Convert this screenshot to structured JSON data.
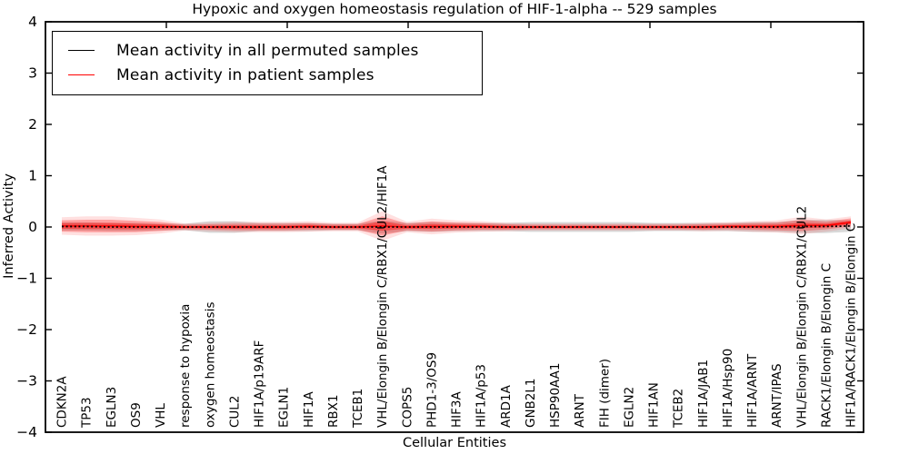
{
  "chart_data": {
    "type": "line",
    "title": "Hypoxic and oxygen homeostasis regulation of HIF-1-alpha -- 529 samples",
    "xlabel": "Cellular Entities",
    "ylabel": "Inferred Activity",
    "ylim": [
      -4,
      4
    ],
    "y_ticks": [
      -4,
      -3,
      -2,
      -1,
      0,
      1,
      2,
      3,
      4
    ],
    "x_tick_rotation": 90,
    "grid": false,
    "legend_position": "upper left",
    "background": "#ffffff",
    "frame_color": "#000000",
    "categories": [
      "CDKN2A",
      "TP53",
      "EGLN3",
      "OS9",
      "VHL",
      "response to hypoxia",
      "oxygen homeostasis",
      "CUL2",
      "HIF1A/p19ARF",
      "EGLN1",
      "HIF1A",
      "RBX1",
      "TCEB1",
      "VHL/Elongin B/Elongin C/RBX1/CUL2/HIF1A",
      "COPS5",
      "PHD1-3/OS9",
      "HIF3A",
      "HIF1A/p53",
      "ARD1A",
      "GNB2L1",
      "HSP90AA1",
      "ARNT",
      "FIH (dimer)",
      "EGLN2",
      "HIF1AN",
      "TCEB2",
      "HIF1A/JAB1",
      "HIF1A/Hsp90",
      "HIF1A/ARNT",
      "ARNT/IPAS",
      "VHL/Elongin B/Elongin C/RBX1/CUL2",
      "RACK1/Elongin B/Elongin C",
      "HIF1A/RACK1/Elongin B/Elongin C"
    ],
    "series": [
      {
        "name": "Mean activity in all permuted samples",
        "color": "#000000",
        "line_style": "dotted",
        "band_color": "#b8b8b8",
        "values": [
          0.01,
          0.01,
          0.0,
          0.0,
          0.0,
          0.0,
          0.0,
          0.0,
          0.0,
          0.0,
          0.0,
          0.0,
          0.0,
          0.0,
          0.0,
          0.0,
          0.0,
          0.0,
          0.0,
          0.0,
          0.0,
          0.0,
          0.0,
          0.0,
          0.0,
          0.0,
          0.0,
          0.0,
          0.0,
          0.0,
          0.01,
          0.01,
          0.02
        ],
        "band_std": [
          0.05,
          0.05,
          0.05,
          0.05,
          0.04,
          0.04,
          0.07,
          0.07,
          0.05,
          0.05,
          0.05,
          0.04,
          0.04,
          0.08,
          0.05,
          0.06,
          0.05,
          0.05,
          0.05,
          0.06,
          0.06,
          0.06,
          0.06,
          0.06,
          0.05,
          0.05,
          0.05,
          0.05,
          0.06,
          0.06,
          0.08,
          0.08,
          0.07
        ]
      },
      {
        "name": "Mean activity in patient samples",
        "color": "#ff0000",
        "line_style": "solid",
        "band_color": "#ff0000",
        "values": [
          0.02,
          0.02,
          0.02,
          0.01,
          0.01,
          0.0,
          0.0,
          0.0,
          0.0,
          0.0,
          0.01,
          0.0,
          0.0,
          0.02,
          0.0,
          0.01,
          0.01,
          0.01,
          0.0,
          0.0,
          0.0,
          0.0,
          0.0,
          0.0,
          0.0,
          0.0,
          0.0,
          0.01,
          0.01,
          0.01,
          0.03,
          0.03,
          0.09
        ],
        "band_std": [
          0.1,
          0.11,
          0.11,
          0.1,
          0.08,
          0.04,
          0.05,
          0.06,
          0.06,
          0.06,
          0.06,
          0.05,
          0.05,
          0.17,
          0.06,
          0.09,
          0.07,
          0.06,
          0.05,
          0.04,
          0.04,
          0.04,
          0.04,
          0.04,
          0.04,
          0.04,
          0.05,
          0.05,
          0.06,
          0.07,
          0.1,
          0.07,
          0.07
        ]
      }
    ]
  }
}
